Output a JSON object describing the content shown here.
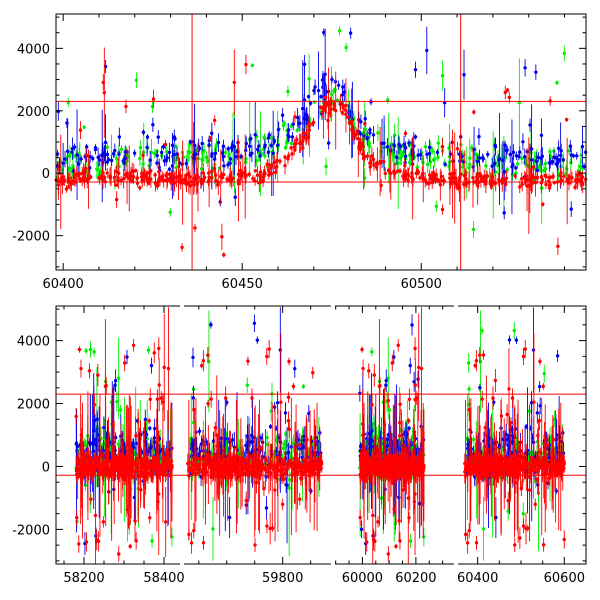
{
  "chart_data": [
    {
      "type": "scatter",
      "title": "",
      "xlabel": "",
      "ylabel": "",
      "xlim": [
        60398,
        60546
      ],
      "ylim": [
        -3100,
        5100
      ],
      "x_ticks": [
        60400,
        60450,
        60500
      ],
      "y_ticks": [
        -2000,
        0,
        2000,
        4000
      ],
      "grid": false,
      "hlines": [
        2300,
        -280
      ],
      "vlines": [
        60436,
        60511
      ],
      "series": [
        {
          "color": "#00ee00",
          "marker": "dot with error bars",
          "envelope": [
            [
              60398,
              250
            ],
            [
              60420,
              400
            ],
            [
              60440,
              500
            ],
            [
              60455,
              700
            ],
            [
              60465,
              1300
            ],
            [
              60472,
              2300
            ],
            [
              60476,
              2400
            ],
            [
              60482,
              1400
            ],
            [
              60490,
              700
            ],
            [
              60510,
              450
            ],
            [
              60525,
              300
            ],
            [
              60546,
              250
            ]
          ],
          "scatter": 600
        },
        {
          "color": "#0000ee",
          "marker": "dot with error bars",
          "envelope": [
            [
              60398,
              450
            ],
            [
              60420,
              650
            ],
            [
              60440,
              700
            ],
            [
              60455,
              800
            ],
            [
              60465,
              1500
            ],
            [
              60472,
              2700
            ],
            [
              60476,
              2800
            ],
            [
              60482,
              1600
            ],
            [
              60490,
              800
            ],
            [
              60510,
              600
            ],
            [
              60525,
              500
            ],
            [
              60546,
              450
            ]
          ],
          "scatter": 650
        },
        {
          "color": "#ff0000",
          "marker": "dot with error bars",
          "envelope": [
            [
              60398,
              -200
            ],
            [
              60420,
              -150
            ],
            [
              60440,
              -150
            ],
            [
              60455,
              -100
            ],
            [
              60462,
              400
            ],
            [
              60468,
              1200
            ],
            [
              60473,
              2200
            ],
            [
              60478,
              2100
            ],
            [
              60484,
              600
            ],
            [
              60492,
              0
            ],
            [
              60510,
              -200
            ],
            [
              60546,
              -250
            ]
          ],
          "scatter": 300
        }
      ]
    },
    {
      "type": "scatter",
      "title": "",
      "xlabel": "",
      "ylabel": "",
      "broken_x_axis": true,
      "x_segments": [
        {
          "xlim": [
            58130,
            58445
          ],
          "x_ticks": [
            58200,
            58400
          ],
          "season_start": 58180,
          "season_end": 58420
        },
        {
          "xlim": [
            59620,
            59890
          ],
          "x_ticks": [
            59800
          ],
          "season_start": 59630,
          "season_end": 59870
        },
        {
          "xlim": [
            59890,
            60350
          ],
          "x_ticks": [
            60000,
            60200
          ],
          "season_start": 59990,
          "season_end": 60230
        },
        {
          "xlim": [
            60350,
            60650
          ],
          "x_ticks": [
            60400,
            60600
          ],
          "season_start": 60370,
          "season_end": 60600
        }
      ],
      "ylim": [
        -3100,
        5100
      ],
      "y_ticks": [
        -2000,
        0,
        2000,
        4000
      ],
      "grid": false,
      "hlines": [
        2300,
        -280
      ],
      "series": [
        {
          "color": "#00ee00",
          "marker": "dot with error bars",
          "center": 300,
          "scatter": 900
        },
        {
          "color": "#0000ee",
          "marker": "dot with error bars",
          "center": 500,
          "scatter": 1000
        },
        {
          "color": "#ff0000",
          "marker": "dot with error bars",
          "center": 0,
          "scatter": 450
        }
      ]
    }
  ]
}
